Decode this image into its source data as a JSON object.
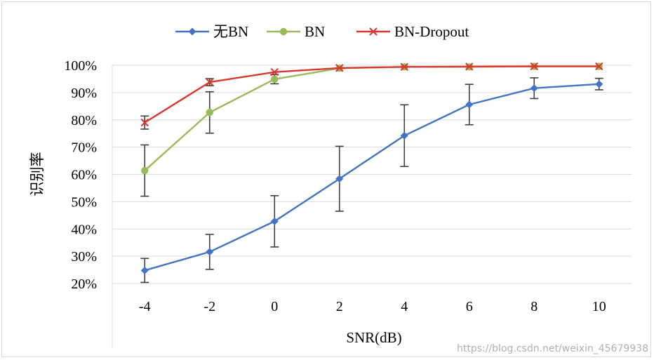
{
  "chart_data": {
    "type": "line",
    "title": "",
    "xlabel": "SNR(dB)",
    "ylabel": "识别率",
    "x": [
      "-4",
      "-2",
      "0",
      "2",
      "4",
      "6",
      "8",
      "10"
    ],
    "ylim": [
      20,
      100
    ],
    "yticks": [
      "20%",
      "30%",
      "40%",
      "50%",
      "60%",
      "70%",
      "80%",
      "90%",
      "100%"
    ],
    "grid": true,
    "legend_position": "top",
    "series": [
      {
        "name": "无BN",
        "color": "#4472c4",
        "marker": "diamond",
        "values": [
          24.8,
          31.6,
          42.8,
          58.4,
          74.2,
          85.6,
          91.6,
          93.1
        ],
        "error_low": [
          20.4,
          25.2,
          33.4,
          46.5,
          62.9,
          78.2,
          87.8,
          91.0
        ],
        "error_high": [
          29.2,
          38.0,
          52.2,
          70.3,
          85.5,
          93.0,
          95.4,
          95.2
        ]
      },
      {
        "name": "BN",
        "color": "#9bbb59",
        "marker": "circle",
        "values": [
          61.4,
          82.7,
          94.9,
          98.9,
          99.4,
          99.4,
          99.6,
          99.6
        ],
        "error_low": [
          52.0,
          75.1,
          93.2,
          null,
          null,
          null,
          null,
          null
        ],
        "error_high": [
          70.8,
          90.3,
          96.6,
          null,
          null,
          null,
          null,
          null
        ]
      },
      {
        "name": "BN-Dropout",
        "color": "#d7382f",
        "marker": "x",
        "values": [
          79.0,
          93.8,
          97.5,
          99.0,
          99.4,
          99.5,
          99.6,
          99.6
        ],
        "error_low": [
          76.6,
          92.5,
          null,
          null,
          null,
          null,
          null,
          null
        ],
        "error_high": [
          81.4,
          95.1,
          null,
          null,
          null,
          null,
          null,
          null
        ]
      }
    ]
  },
  "watermark": "https://blog.csdn.net/weixin_45679938"
}
